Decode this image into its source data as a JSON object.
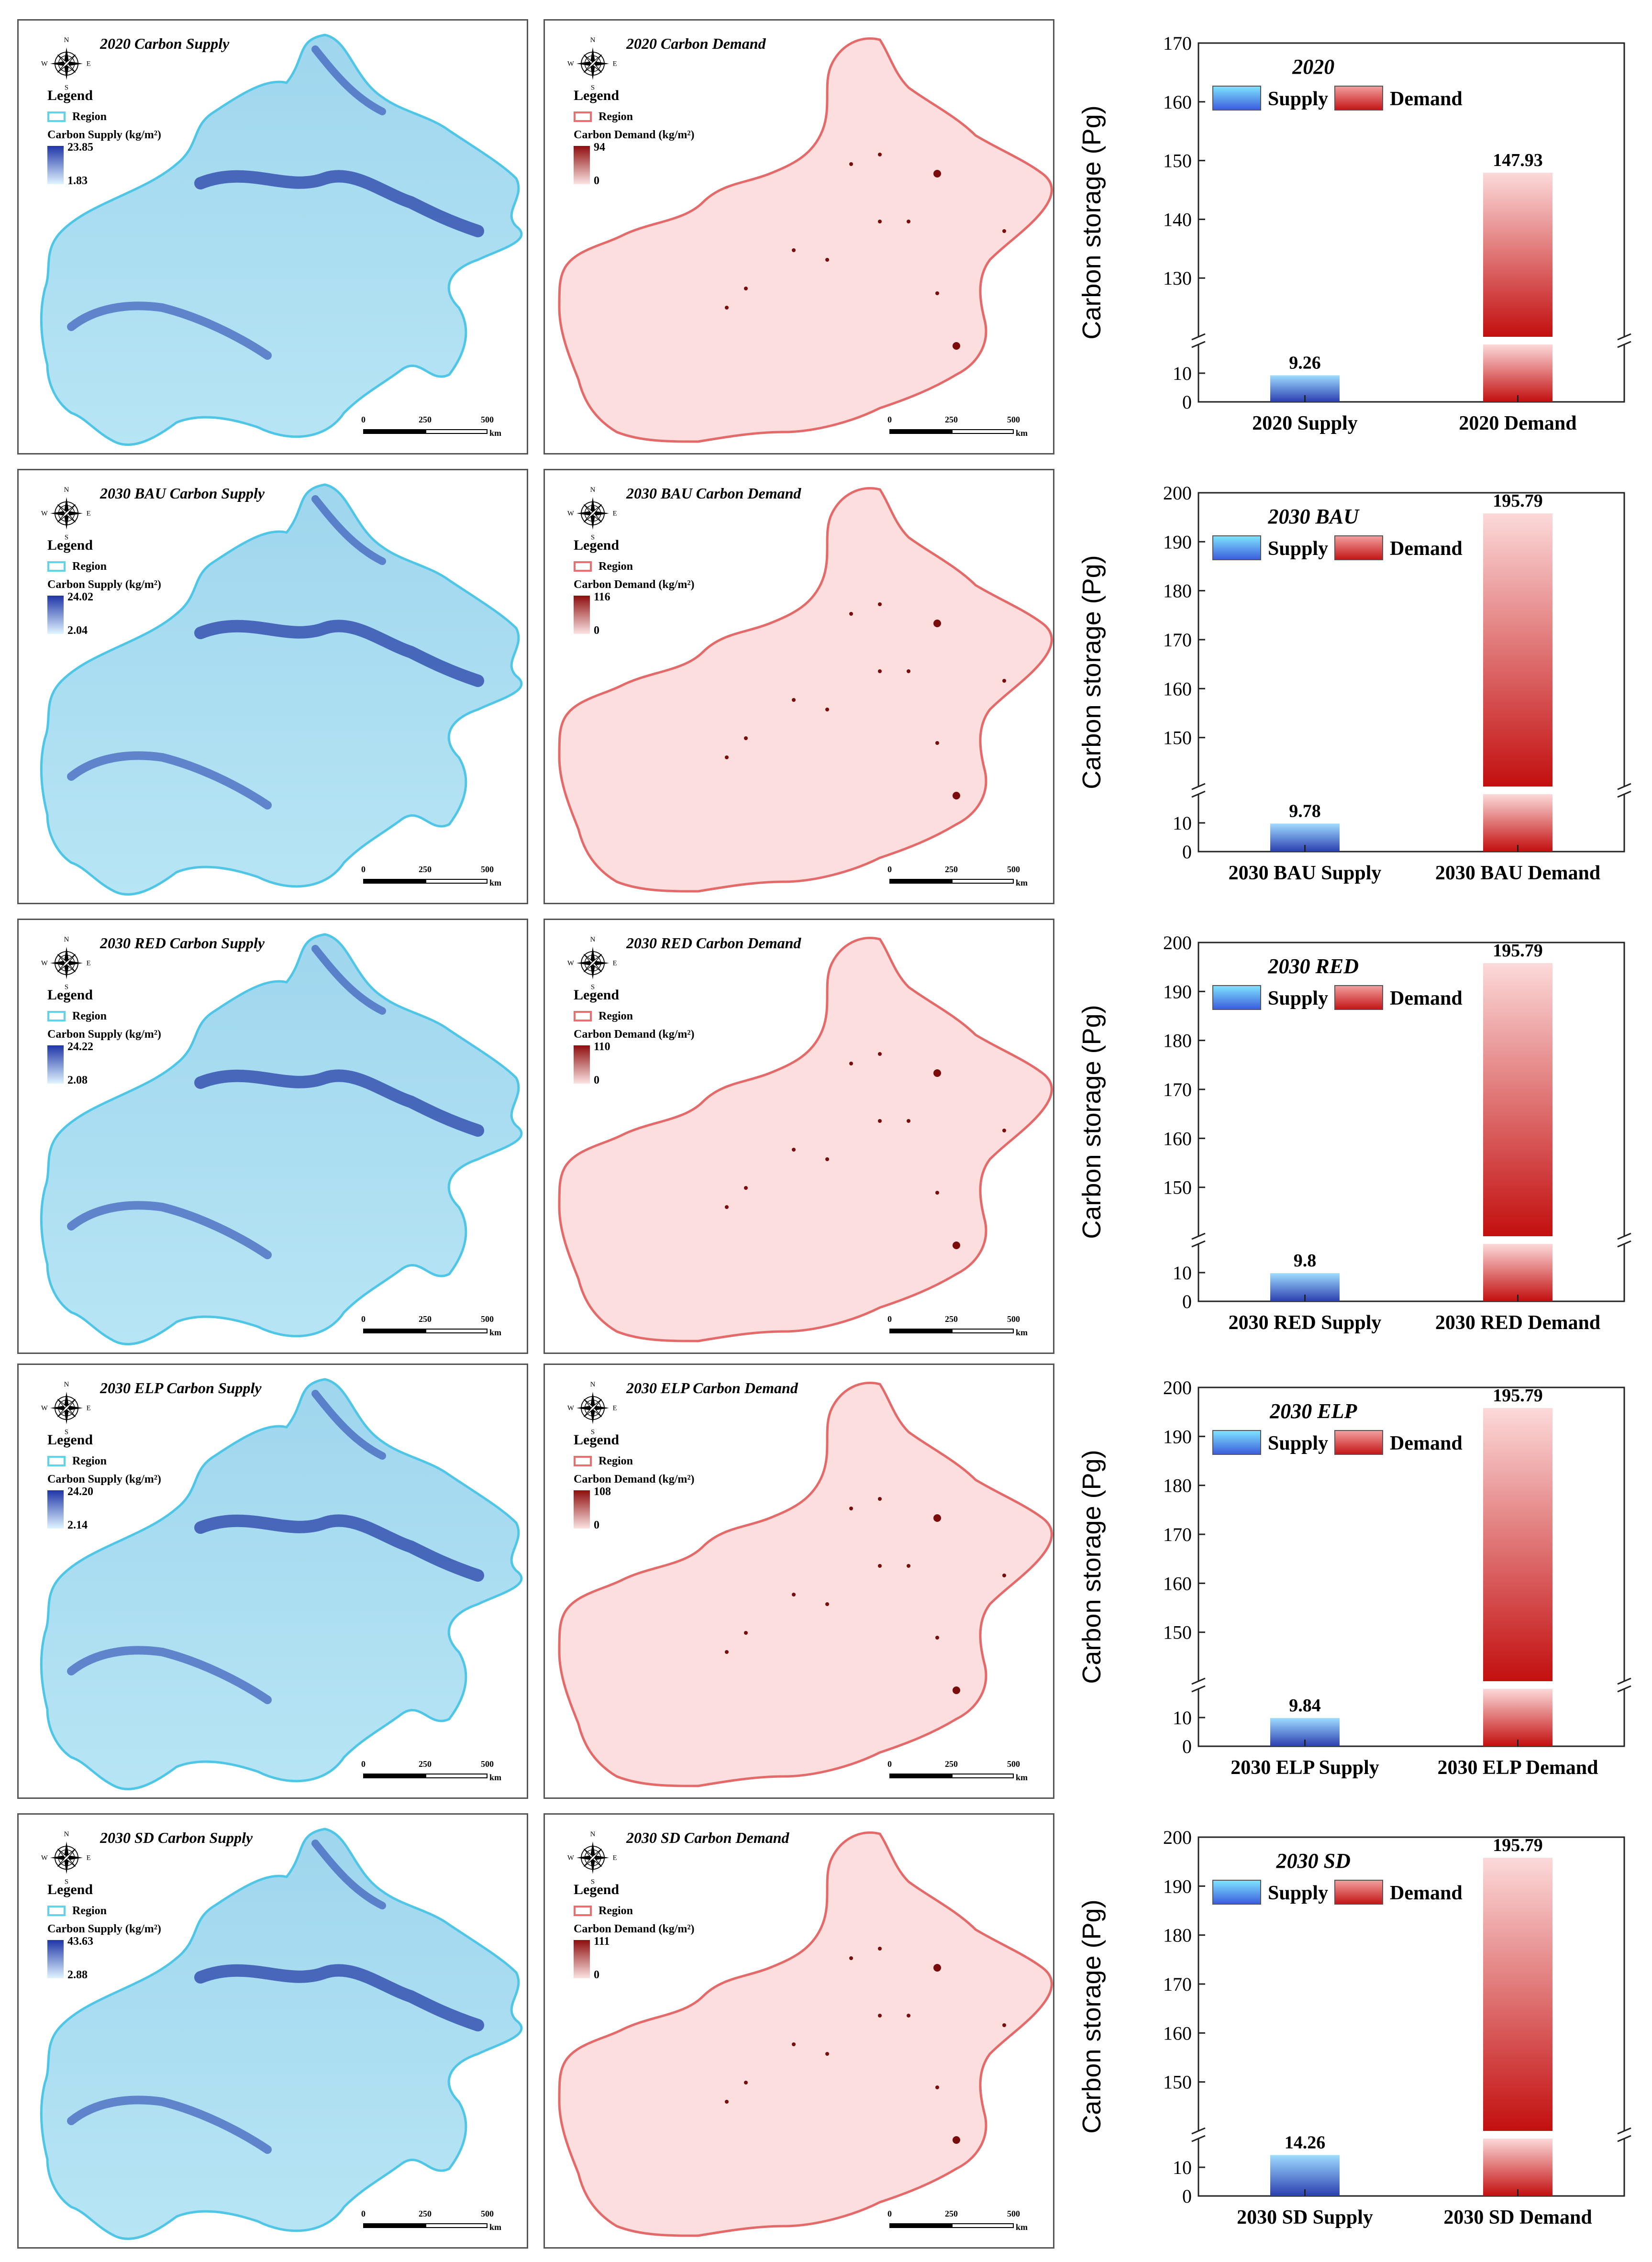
{
  "compass": {
    "n": "N",
    "s": "S",
    "e": "E",
    "w": "W"
  },
  "scale": {
    "zero": "0",
    "mid": "250",
    "end": "500",
    "unit": "km"
  },
  "legend_title": "Legend",
  "region_label": "Region",
  "supply_legend_label": "Carbon Supply (kg/m²)",
  "demand_legend_label": "Carbon Demand (kg/m²)",
  "colors": {
    "supply_top": "#2b3fb0",
    "supply_bottom": "#9fdcff",
    "demand_top": "#c30f0f",
    "demand_bottom": "#fcd9d9",
    "map_supply": "#b8e6f6",
    "map_demand": "#fcdede"
  },
  "rows": [
    {
      "supply_title": "2020 Carbon Supply",
      "supply_max": "23.85",
      "supply_min": "1.83",
      "demand_title": "2020 Carbon Demand",
      "demand_max": "94",
      "demand_min": "0"
    },
    {
      "supply_title": "2030 BAU Carbon Supply",
      "supply_max": "24.02",
      "supply_min": "2.04",
      "demand_title": "2030 BAU Carbon Demand",
      "demand_max": "116",
      "demand_min": "0"
    },
    {
      "supply_title": "2030 RED Carbon Supply",
      "supply_max": "24.22",
      "supply_min": "2.08",
      "demand_title": "2030 RED Carbon Demand",
      "demand_max": "110",
      "demand_min": "0"
    },
    {
      "supply_title": "2030 ELP Carbon Supply",
      "supply_max": "24.20",
      "supply_min": "2.14",
      "demand_title": "2030 ELP Carbon Demand",
      "demand_max": "108",
      "demand_min": "0"
    },
    {
      "supply_title": "2030 SD Carbon Supply",
      "supply_max": "43.63",
      "supply_min": "2.88",
      "demand_title": "2030 SD Carbon Demand",
      "demand_max": "111",
      "demand_min": "0"
    }
  ],
  "chart_data": [
    {
      "type": "bar",
      "title": "2020",
      "ylabel": "Carbon storage (Pg)",
      "categories": [
        "2020 Supply",
        "2020 Demand"
      ],
      "values": [
        9.26,
        147.93
      ],
      "value_labels": [
        "9.26",
        "147.93"
      ],
      "legend": [
        "Supply",
        "Demand"
      ],
      "axis_break": [
        20,
        120
      ],
      "lower_ticks": [
        0,
        10
      ],
      "upper_ticks": [
        130,
        140,
        150,
        160,
        170
      ],
      "ylim": [
        0,
        170
      ]
    },
    {
      "type": "bar",
      "title": "2030 BAU",
      "ylabel": "Carbon storage (Pg)",
      "categories": [
        "2030 BAU Supply",
        "2030 BAU Demand"
      ],
      "values": [
        9.78,
        195.79
      ],
      "value_labels": [
        "9.78",
        "195.79"
      ],
      "legend": [
        "Supply",
        "Demand"
      ],
      "axis_break": [
        20,
        140
      ],
      "lower_ticks": [
        0,
        10
      ],
      "upper_ticks": [
        150,
        160,
        170,
        180,
        190,
        200
      ],
      "ylim": [
        0,
        200
      ]
    },
    {
      "type": "bar",
      "title": "2030 RED",
      "ylabel": "Carbon storage (Pg)",
      "categories": [
        "2030 RED Supply",
        "2030 RED Demand"
      ],
      "values": [
        9.8,
        195.79
      ],
      "value_labels": [
        "9.8",
        "195.79"
      ],
      "legend": [
        "Supply",
        "Demand"
      ],
      "axis_break": [
        20,
        140
      ],
      "lower_ticks": [
        0,
        10
      ],
      "upper_ticks": [
        150,
        160,
        170,
        180,
        190,
        200
      ],
      "ylim": [
        0,
        200
      ]
    },
    {
      "type": "bar",
      "title": "2030 ELP",
      "ylabel": "Carbon storage (Pg)",
      "categories": [
        "2030 ELP Supply",
        "2030 ELP Demand"
      ],
      "values": [
        9.84,
        195.79
      ],
      "value_labels": [
        "9.84",
        "195.79"
      ],
      "legend": [
        "Supply",
        "Demand"
      ],
      "axis_break": [
        20,
        140
      ],
      "lower_ticks": [
        0,
        10
      ],
      "upper_ticks": [
        150,
        160,
        170,
        180,
        190,
        200
      ],
      "ylim": [
        0,
        200
      ]
    },
    {
      "type": "bar",
      "title": "2030 SD",
      "ylabel": "Carbon storage (Pg)",
      "categories": [
        "2030 SD Supply",
        "2030 SD Demand"
      ],
      "values": [
        14.26,
        195.79
      ],
      "value_labels": [
        "14.26",
        "195.79"
      ],
      "legend": [
        "Supply",
        "Demand"
      ],
      "axis_break": [
        20,
        140
      ],
      "lower_ticks": [
        0,
        10
      ],
      "upper_ticks": [
        150,
        160,
        170,
        180,
        190,
        200
      ],
      "ylim": [
        0,
        200
      ]
    }
  ]
}
